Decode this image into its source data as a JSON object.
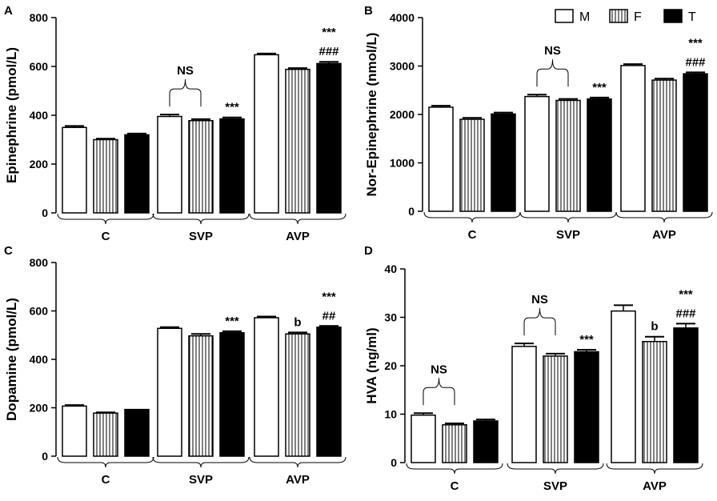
{
  "legend": [
    {
      "label": "M",
      "pattern": "white"
    },
    {
      "label": "F",
      "pattern": "stripes"
    },
    {
      "label": "T",
      "pattern": "black"
    }
  ],
  "colors": {
    "ink": "#000000",
    "fill_white": "#ffffff",
    "fill_black": "#000000"
  },
  "chart_data": [
    {
      "panel": "A",
      "type": "bar",
      "ylabel": "Epinephrine (pmol/L)",
      "ylim": [
        0,
        800
      ],
      "yticks": [
        0,
        200,
        400,
        600,
        800
      ],
      "categories": [
        "C",
        "SVP",
        "AVP"
      ],
      "series": [
        {
          "name": "M",
          "values": [
            350,
            395,
            648
          ],
          "errors": [
            6,
            8,
            5
          ]
        },
        {
          "name": "F",
          "values": [
            300,
            378,
            588
          ],
          "errors": [
            4,
            6,
            5
          ]
        },
        {
          "name": "T",
          "values": [
            320,
            385,
            612
          ],
          "errors": [
            5,
            6,
            7
          ]
        }
      ],
      "annotations": [
        {
          "text": "NS",
          "group": 1,
          "kind": "brace"
        },
        {
          "text": "***",
          "group": 1,
          "series": 2
        },
        {
          "text": "***",
          "group": 2,
          "series": 2,
          "line": 1
        },
        {
          "text": "###",
          "group": 2,
          "series": 2,
          "line": 0
        }
      ]
    },
    {
      "panel": "B",
      "type": "bar",
      "ylabel": "Nor-Epinephrine (nmol/L)",
      "ylim": [
        0,
        4000
      ],
      "yticks": [
        0,
        1000,
        2000,
        3000,
        4000
      ],
      "categories": [
        "C",
        "SVP",
        "AVP"
      ],
      "series": [
        {
          "name": "M",
          "values": [
            2150,
            2370,
            3010
          ],
          "errors": [
            30,
            40,
            30
          ]
        },
        {
          "name": "F",
          "values": [
            1900,
            2290,
            2710
          ],
          "errors": [
            30,
            30,
            30
          ]
        },
        {
          "name": "T",
          "values": [
            2010,
            2320,
            2840
          ],
          "errors": [
            30,
            30,
            30
          ]
        }
      ],
      "annotations": [
        {
          "text": "NS",
          "group": 1,
          "kind": "brace"
        },
        {
          "text": "***",
          "group": 1,
          "series": 2
        },
        {
          "text": "***",
          "group": 2,
          "series": 2,
          "line": 1
        },
        {
          "text": "###",
          "group": 2,
          "series": 2,
          "line": 0
        }
      ]
    },
    {
      "panel": "C",
      "type": "bar",
      "ylabel": "Dopamine (pmol/L)",
      "ylim": [
        0,
        800
      ],
      "yticks": [
        0,
        200,
        400,
        600,
        800
      ],
      "categories": [
        "C",
        "SVP",
        "AVP"
      ],
      "series": [
        {
          "name": "M",
          "values": [
            207,
            528,
            572
          ],
          "errors": [
            4,
            5,
            5
          ]
        },
        {
          "name": "F",
          "values": [
            178,
            497,
            505
          ],
          "errors": [
            3,
            8,
            6
          ]
        },
        {
          "name": "T",
          "values": [
            193,
            510,
            533
          ],
          "errors": [
            0,
            6,
            5
          ]
        }
      ],
      "annotations": [
        {
          "text": "***",
          "group": 1,
          "series": 2
        },
        {
          "text": "b",
          "group": 2,
          "series": 1
        },
        {
          "text": "***",
          "group": 2,
          "series": 2,
          "line": 1
        },
        {
          "text": "##",
          "group": 2,
          "series": 2,
          "line": 0
        }
      ]
    },
    {
      "panel": "D",
      "type": "bar",
      "ylabel": "HVA (ng/ml)",
      "ylim": [
        0,
        40
      ],
      "yticks": [
        0,
        10,
        20,
        30,
        40
      ],
      "categories": [
        "C",
        "SVP",
        "AVP"
      ],
      "series": [
        {
          "name": "M",
          "values": [
            9.8,
            24.0,
            31.3
          ],
          "errors": [
            0.4,
            0.6,
            1.2
          ]
        },
        {
          "name": "F",
          "values": [
            7.8,
            22.0,
            25.0
          ],
          "errors": [
            0.3,
            0.5,
            1.0
          ]
        },
        {
          "name": "T",
          "values": [
            8.6,
            22.9,
            27.8
          ],
          "errors": [
            0.3,
            0.4,
            0.9
          ]
        }
      ],
      "annotations": [
        {
          "text": "NS",
          "group": 0,
          "kind": "brace"
        },
        {
          "text": "NS",
          "group": 1,
          "kind": "brace"
        },
        {
          "text": "***",
          "group": 1,
          "series": 2
        },
        {
          "text": "b",
          "group": 2,
          "series": 1
        },
        {
          "text": "***",
          "group": 2,
          "series": 2,
          "line": 1
        },
        {
          "text": "###",
          "group": 2,
          "series": 2,
          "line": 0
        }
      ]
    }
  ]
}
